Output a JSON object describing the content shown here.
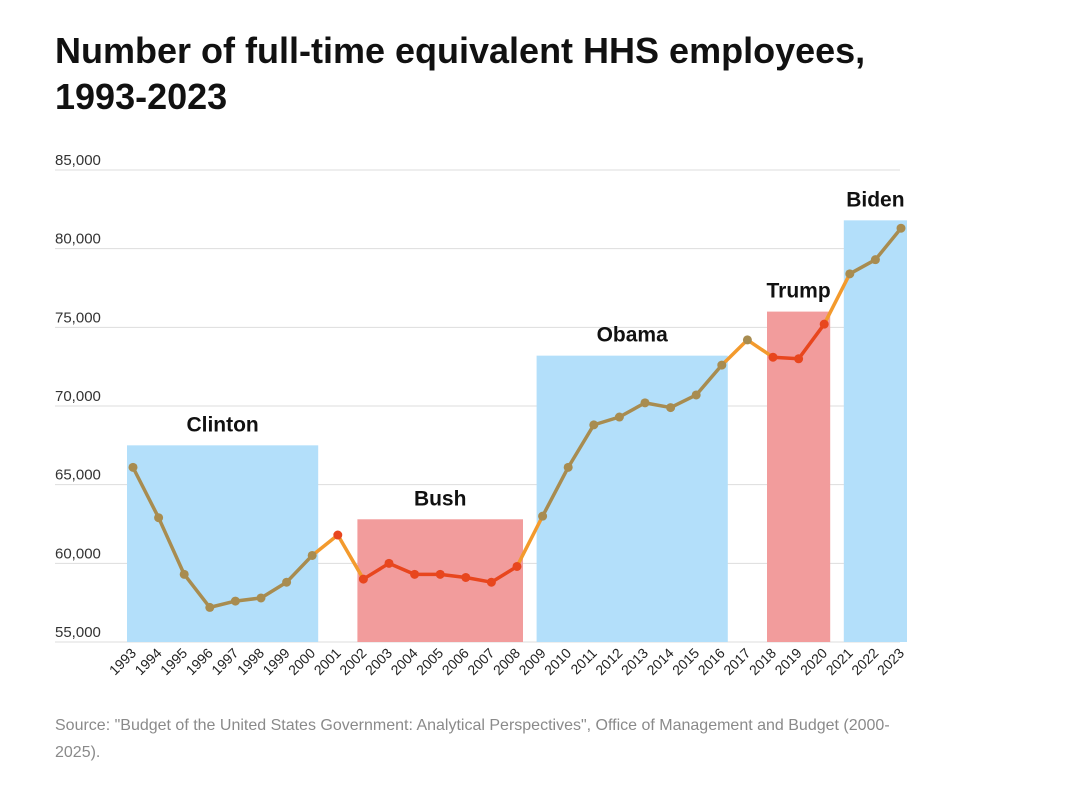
{
  "title": "Number of full-time equivalent HHS employees, 1993-2023",
  "source": "Source: \"Budget of the United States Government: Analytical Perspectives\",  Office of Management and Budget (2000-2025).",
  "colors": {
    "blue_band": "#b3dffa",
    "red_band": "#f29c9c",
    "line_blue_era": "#a88c50",
    "line_red_era": "#e8461e",
    "transition": "#f39a2d",
    "grid": "#dddddd"
  },
  "chart_data": {
    "type": "line",
    "title": "Number of full-time equivalent HHS employees, 1993-2023",
    "xlabel": "",
    "ylabel": "",
    "ylim": [
      55000,
      85000
    ],
    "yticks": [
      "55,000",
      "60,000",
      "65,000",
      "70,000",
      "75,000",
      "80,000",
      "85,000"
    ],
    "ytick_values": [
      55000,
      60000,
      65000,
      70000,
      75000,
      80000,
      85000
    ],
    "grid": true,
    "x": [
      "1993",
      "1994",
      "1995",
      "1996",
      "1997",
      "1998",
      "1999",
      "2000",
      "2001",
      "2002",
      "2003",
      "2004",
      "2005",
      "2006",
      "2007",
      "2008",
      "2009",
      "2010",
      "2011",
      "2012",
      "2013",
      "2014",
      "2015",
      "2016",
      "2017",
      "2018",
      "2019",
      "2020",
      "2021",
      "2022",
      "2023"
    ],
    "series": [
      {
        "values": [
          66100,
          62900,
          59300,
          57200,
          57600,
          57800,
          58800,
          60500,
          61800,
          59000,
          60000,
          59300,
          59300,
          59100,
          58800,
          59800,
          63000,
          66100,
          68800,
          69300,
          70200,
          69900,
          70700,
          72600,
          74200,
          73100,
          73000,
          75200,
          78400,
          79300,
          81300
        ]
      }
    ],
    "eras": [
      {
        "label": "Clinton",
        "party": "blue",
        "start": "1993",
        "end": "2000",
        "band_top": 67500
      },
      {
        "label": "Bush",
        "party": "red",
        "start": "2002",
        "end": "2008",
        "band_top": 62800
      },
      {
        "label": "Obama",
        "party": "blue",
        "start": "2009",
        "end": "2016",
        "band_top": 73200
      },
      {
        "label": "Trump",
        "party": "red",
        "start": "2018",
        "end": "2020",
        "band_top": 76000
      },
      {
        "label": "Biden",
        "party": "blue",
        "start": "2021",
        "end": "2023",
        "band_top": 81800
      }
    ]
  }
}
